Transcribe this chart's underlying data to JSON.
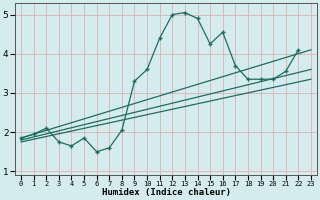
{
  "xlabel": "Humidex (Indice chaleur)",
  "background_color": "#d4ecee",
  "grid_color": "#e0b0b0",
  "line_color": "#1a6e60",
  "x_data": [
    0,
    1,
    2,
    3,
    4,
    5,
    6,
    7,
    8,
    9,
    10,
    11,
    12,
    13,
    14,
    15,
    16,
    17,
    18,
    19,
    20,
    21,
    22,
    23
  ],
  "y_main": [
    1.85,
    1.95,
    2.1,
    1.75,
    1.65,
    1.85,
    1.5,
    1.6,
    2.05,
    3.3,
    3.6,
    4.4,
    5.0,
    5.05,
    4.9,
    4.25,
    4.55,
    3.7,
    3.35,
    3.35,
    3.35,
    3.55,
    4.1,
    null
  ],
  "y_reg1_start": 1.85,
  "y_reg1_end": 4.1,
  "y_reg2_start": 1.8,
  "y_reg2_end": 3.6,
  "y_reg3_start": 1.75,
  "y_reg3_end": 3.35,
  "x_reg_start": 0,
  "x_reg_end": 23,
  "xlim": [
    -0.5,
    23.5
  ],
  "ylim": [
    0.9,
    5.3
  ],
  "yticks": [
    1,
    2,
    3,
    4,
    5
  ],
  "xticks": [
    0,
    1,
    2,
    3,
    4,
    5,
    6,
    7,
    8,
    9,
    10,
    11,
    12,
    13,
    14,
    15,
    16,
    17,
    18,
    19,
    20,
    21,
    22,
    23
  ]
}
